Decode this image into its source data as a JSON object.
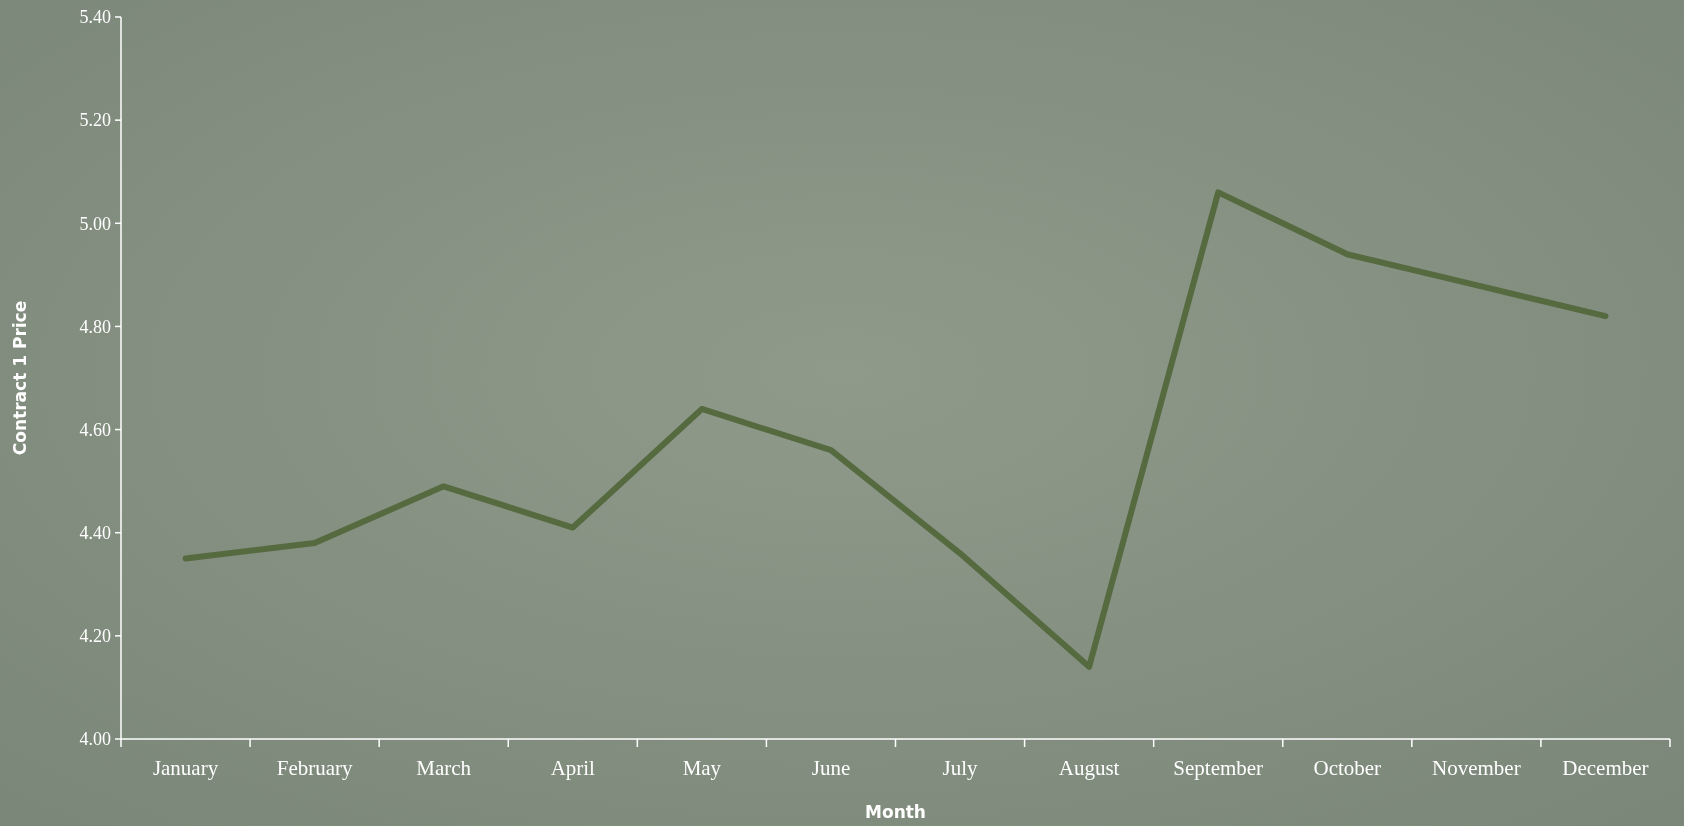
{
  "chart_data": {
    "type": "line",
    "xlabel": "Month",
    "ylabel": "Contract 1 Price",
    "categories": [
      "January",
      "February",
      "March",
      "April",
      "May",
      "June",
      "July",
      "August",
      "September",
      "October",
      "November",
      "December"
    ],
    "series": [
      {
        "color": "#566a40",
        "values": [
          4.35,
          4.38,
          4.49,
          4.41,
          4.64,
          4.56,
          4.36,
          4.14,
          5.06,
          4.94,
          4.88,
          4.82
        ]
      }
    ],
    "ylim": [
      4.0,
      5.4
    ],
    "yticks": [
      {
        "value": 4.0,
        "label": "4.00"
      },
      {
        "value": 4.2,
        "label": "4.20"
      },
      {
        "value": 4.4,
        "label": "4.40"
      },
      {
        "value": 4.6,
        "label": "4.60"
      },
      {
        "value": 4.8,
        "label": "4.80"
      },
      {
        "value": 5.0,
        "label": "5.00"
      },
      {
        "value": 5.2,
        "label": "5.20"
      },
      {
        "value": 5.4,
        "label": "5.40"
      }
    ],
    "grid": false,
    "marker": "none",
    "line_style": "solid"
  }
}
